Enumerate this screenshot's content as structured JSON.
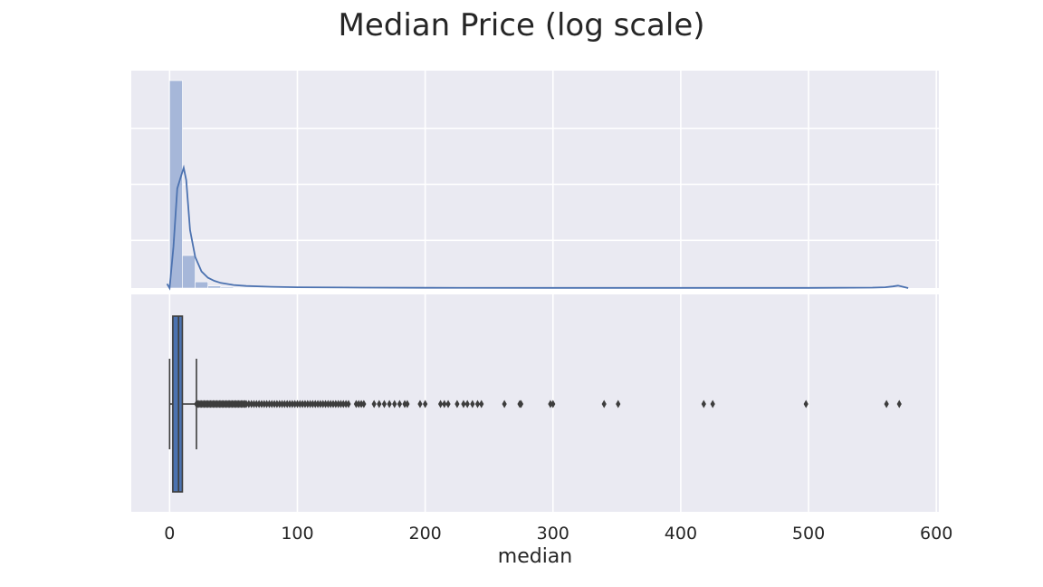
{
  "figure": {
    "title": "Median Price (log scale)"
  },
  "chart_data": [
    {
      "type": "histogram",
      "x": [
        5,
        15,
        25,
        35,
        45,
        55,
        65,
        75,
        85,
        95,
        105,
        115,
        125,
        135,
        145,
        155,
        165,
        175,
        185,
        195,
        205,
        215,
        225,
        235,
        245,
        255,
        265,
        275,
        285,
        295,
        305,
        315,
        325,
        335,
        345,
        355,
        365,
        375,
        385,
        395,
        405,
        415,
        425,
        435,
        445,
        455,
        465,
        475,
        485,
        495,
        505,
        515,
        525,
        535,
        545,
        555,
        565
      ],
      "values": [
        1.0,
        0.157,
        0.03,
        0.01,
        0.005,
        0.003,
        0.002,
        0.0015,
        0.001,
        0.001,
        0.0008,
        0.0007,
        0.0006,
        0.0005,
        0.0005,
        0.0004,
        0.0004,
        0.0003,
        0.0003,
        0.0003,
        0.0003,
        0.0002,
        0.0002,
        0.0002,
        0.0002,
        0,
        0.0001,
        0.0001,
        0,
        0.0001,
        0,
        0,
        0,
        0,
        0.0001,
        0,
        0,
        0,
        0,
        0,
        0,
        0.0001,
        0.0001,
        0,
        0,
        0,
        0,
        0,
        0,
        0.0001,
        0,
        0,
        0,
        0,
        0,
        0.0001,
        0.0001
      ],
      "bin_width": 10,
      "kde": {
        "x": [
          -2,
          0,
          3,
          6,
          9,
          11,
          13,
          16,
          20,
          25,
          30,
          35,
          40,
          50,
          60,
          80,
          100,
          150,
          200,
          300,
          400,
          500,
          550,
          560,
          566,
          570,
          574,
          578
        ],
        "y": [
          0.02,
          0.0,
          0.2,
          0.48,
          0.54,
          0.58,
          0.52,
          0.28,
          0.15,
          0.08,
          0.05,
          0.035,
          0.025,
          0.015,
          0.01,
          0.006,
          0.004,
          0.002,
          0.0015,
          0.001,
          0.001,
          0.001,
          0.002,
          0.004,
          0.008,
          0.012,
          0.006,
          0.0
        ]
      },
      "xlim": [
        -30,
        602
      ],
      "ylim": [
        0,
        1.05
      ],
      "grid": true,
      "color": "#4c72b0",
      "bar_color": "#a6b7d9"
    },
    {
      "type": "boxplot",
      "stats": {
        "whislo": 0,
        "q1": 2.5,
        "med": 7,
        "q3": 10,
        "whishi": 21
      },
      "outliers": [
        21,
        22,
        23,
        24,
        25,
        26,
        27,
        28,
        29,
        30,
        31,
        32,
        33,
        34,
        35,
        36,
        37,
        38,
        39,
        40,
        41,
        42,
        43,
        44,
        45,
        46,
        47,
        48,
        49,
        50,
        51,
        52,
        53,
        54,
        55,
        56,
        57,
        58,
        59,
        60,
        62,
        64,
        66,
        68,
        70,
        72,
        74,
        76,
        78,
        80,
        82,
        84,
        86,
        88,
        90,
        92,
        94,
        96,
        98,
        100,
        102,
        104,
        106,
        108,
        110,
        112,
        114,
        116,
        118,
        120,
        122,
        124,
        126,
        128,
        130,
        132,
        134,
        136,
        138,
        140,
        146,
        148,
        150,
        152,
        160,
        164,
        168,
        172,
        176,
        180,
        184,
        186,
        196,
        200,
        212,
        215,
        218,
        225,
        230,
        233,
        237,
        241,
        244,
        262,
        274,
        275,
        298,
        300,
        340,
        351,
        418,
        425,
        498,
        561,
        571
      ],
      "xlabel": "median",
      "xticks": [
        "0",
        "100",
        "200",
        "300",
        "400",
        "500",
        "600"
      ],
      "xtick_values": [
        0,
        100,
        200,
        300,
        400,
        500,
        600
      ],
      "xlim": [
        -30,
        602
      ],
      "grid": true,
      "box_color": "#4c72b0",
      "line_color": "#3d3d3d"
    }
  ]
}
